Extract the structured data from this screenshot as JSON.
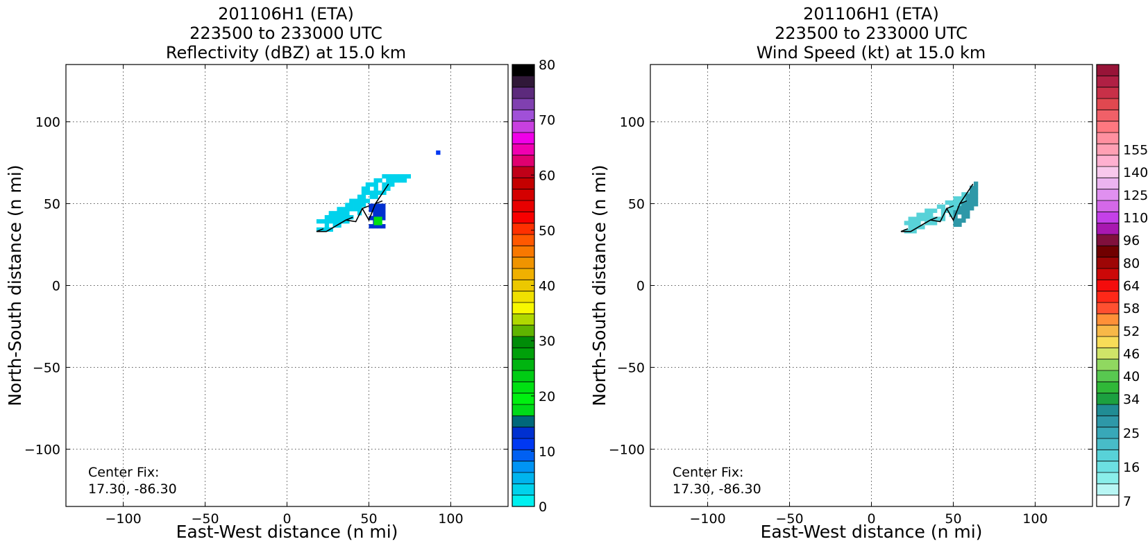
{
  "chart_data": [
    {
      "type": "heatmap",
      "title_lines": [
        "201106H1 (ETA)",
        "223500 to 233000 UTC",
        "Reflectivity (dBZ) at 15.0 km"
      ],
      "xlabel": "East-West distance (n mi)",
      "ylabel": "North-South distance (n mi)",
      "xlim": [
        -135,
        135
      ],
      "ylim": [
        -135,
        135
      ],
      "xticks": [
        -100,
        -50,
        0,
        50,
        100
      ],
      "yticks": [
        -100,
        -50,
        0,
        50,
        100
      ],
      "xtick_labels": [
        "−100",
        "−50",
        "0",
        "50",
        "100"
      ],
      "ytick_labels": [
        "−100",
        "−50",
        "0",
        "50",
        "100"
      ],
      "grid": true,
      "annotation": [
        "Center Fix:",
        "17.30, -86.30"
      ],
      "colorbar": {
        "vmin": 0,
        "vmax": 80,
        "ticks": [
          0,
          10,
          20,
          30,
          40,
          50,
          60,
          70,
          80
        ],
        "tick_labels": [
          "0",
          "10",
          "20",
          "30",
          "40",
          "50",
          "60",
          "70",
          "80"
        ],
        "colors": [
          "#00f0f0",
          "#00d2ec",
          "#00b4ee",
          "#0094f4",
          "#0060f2",
          "#0038f2",
          "#0030d0",
          "#00687a",
          "#00da18",
          "#00f010",
          "#00e012",
          "#00cc14",
          "#00b410",
          "#00a00a",
          "#008c08",
          "#60b400",
          "#b0d800",
          "#f8f800",
          "#f0e000",
          "#ecc800",
          "#f0b000",
          "#f09400",
          "#f87800",
          "#ff5800",
          "#ff3000",
          "#f80000",
          "#e80000",
          "#d40000",
          "#c40000",
          "#c00018",
          "#e00070",
          "#f000b0",
          "#f000e8",
          "#c840e0",
          "#a050d8",
          "#8040b0",
          "#5c2a7c",
          "#301838",
          "#000000"
        ]
      },
      "echo_regions": [
        {
          "x": [
            18,
            75
          ],
          "y": [
            33,
            67
          ],
          "dbz": 3,
          "description": "light echo band"
        },
        {
          "x": [
            50,
            60
          ],
          "y": [
            35,
            48
          ],
          "dbz": 12,
          "description": "moderate core"
        },
        {
          "x": [
            53,
            57
          ],
          "y": [
            37,
            41
          ],
          "dbz": 21,
          "description": "embedded maximum"
        },
        {
          "x": [
            91,
            93
          ],
          "y": [
            80,
            81
          ],
          "dbz": 11,
          "description": "isolated pixel"
        }
      ],
      "flight_track": [
        [
          18,
          33
        ],
        [
          24,
          33
        ],
        [
          36,
          40
        ],
        [
          42,
          39
        ],
        [
          46,
          47
        ],
        [
          50,
          40
        ],
        [
          54,
          50
        ],
        [
          62,
          62
        ]
      ]
    },
    {
      "type": "heatmap",
      "title_lines": [
        "201106H1 (ETA)",
        "223500 to 233000 UTC",
        "Wind Speed (kt) at 15.0 km"
      ],
      "xlabel": "East-West distance (n mi)",
      "ylabel": "North-South distance (n mi)",
      "xlim": [
        -135,
        135
      ],
      "ylim": [
        -135,
        135
      ],
      "xticks": [
        -100,
        -50,
        0,
        50,
        100
      ],
      "yticks": [
        -100,
        -50,
        0,
        50,
        100
      ],
      "xtick_labels": [
        "−100",
        "−50",
        "0",
        "50",
        "100"
      ],
      "ytick_labels": [
        "−100",
        "−50",
        "0",
        "50",
        "100"
      ],
      "grid": true,
      "annotation": [
        "Center Fix:",
        "17.30, -86.30"
      ],
      "colorbar": {
        "tick_labels": [
          "7",
          "16",
          "25",
          "34",
          "40",
          "46",
          "52",
          "58",
          "64",
          "80",
          "96",
          "110",
          "125",
          "140",
          "155"
        ],
        "tick_bins": [
          0,
          3,
          6,
          9,
          11,
          13,
          15,
          17,
          19,
          21,
          23,
          25,
          27,
          29,
          31
        ],
        "colors": [
          "#ffffff",
          "#b8f6f4",
          "#8aeeea",
          "#6ce0e2",
          "#58d2d8",
          "#48bcc8",
          "#38a8b8",
          "#2e98a8",
          "#208c94",
          "#1ca040",
          "#30b838",
          "#58c850",
          "#90d860",
          "#d0e468",
          "#f8dc58",
          "#f8b848",
          "#ff9038",
          "#ff5030",
          "#ff2818",
          "#f40c0c",
          "#cc0808",
          "#9e0606",
          "#700000",
          "#80103c",
          "#a818b0",
          "#c440e8",
          "#d468e8",
          "#e090f0",
          "#ecb4f0",
          "#f8c8ec",
          "#ffb0d0",
          "#ffa0b4",
          "#ff90a0",
          "#ff7880",
          "#f06068",
          "#e04850",
          "#c83048",
          "#b02044",
          "#981438"
        ]
      },
      "wind_regions": [
        {
          "x": [
            20,
            62
          ],
          "y": [
            32,
            64
          ],
          "kt": 17,
          "description": "light wind band"
        },
        {
          "x": [
            50,
            65
          ],
          "y": [
            36,
            62
          ],
          "kt": 28,
          "description": "stronger wind segment"
        }
      ],
      "flight_track": [
        [
          18,
          33
        ],
        [
          24,
          33
        ],
        [
          36,
          40
        ],
        [
          42,
          39
        ],
        [
          46,
          47
        ],
        [
          50,
          40
        ],
        [
          54,
          50
        ],
        [
          62,
          62
        ]
      ]
    }
  ]
}
